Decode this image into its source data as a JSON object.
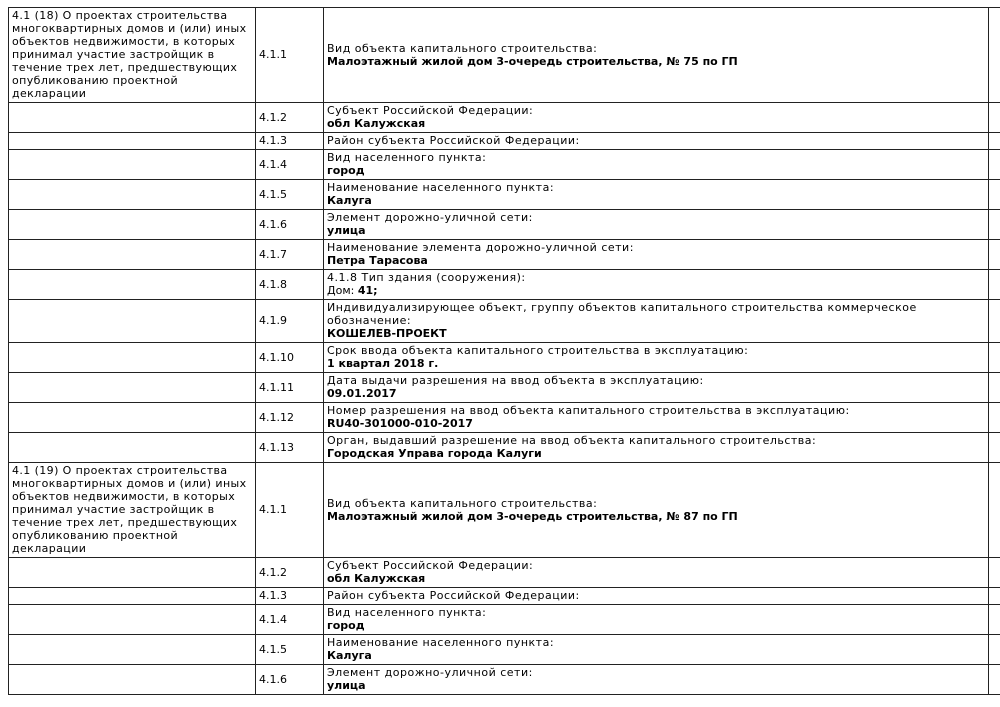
{
  "page": {
    "background_color": "#ffffff",
    "text_color": "#000000",
    "border_color": "#222222"
  },
  "table": {
    "sections": [
      {
        "header": "4.1 (18) О проектах строительства многоквартирных домов и (или) иных объектов недвижимости, в которых принимал участие застройщик в течение трех лет, предшествующих опубликованию проектной декларации",
        "rows": [
          {
            "num": "4.1.1",
            "label": "Вид объекта капитального строительства:",
            "value": "Малоэтажный жилой дом 3-очередь строительства, № 75 по ГП"
          },
          {
            "num": "4.1.2",
            "label": "Субъект Российской Федерации:",
            "value": "обл Калужская"
          },
          {
            "num": "4.1.3",
            "label": "Район субъекта Российской Федерации:",
            "value": ""
          },
          {
            "num": "4.1.4",
            "label": "Вид населенного пункта:",
            "value": "город"
          },
          {
            "num": "4.1.5",
            "label": "Наименование населенного пункта:",
            "value": "Калуга"
          },
          {
            "num": "4.1.6",
            "label": "Элемент дорожно-уличной сети:",
            "value": "улица"
          },
          {
            "num": "4.1.7",
            "label": "Наименование элемента дорожно-уличной сети:",
            "value": "Петра Тарасова"
          },
          {
            "num": "4.1.8",
            "label": "4.1.8 Тип здания (сооружения):",
            "value_prefix": "Дом: ",
            "value": "41;"
          },
          {
            "num": "4.1.9",
            "label": "Индивидуализирующее объект, группу объектов капитального строительства коммерческое обозначение:",
            "value": "КОШЕЛЕВ-ПРОЕКТ"
          },
          {
            "num": "4.1.10",
            "label": "Срок ввода объекта капитального строительства в эксплуатацию:",
            "value": "1 квартал 2018 г."
          },
          {
            "num": "4.1.11",
            "label": "Дата выдачи разрешения на ввод объекта в эксплуатацию:",
            "value": "09.01.2017"
          },
          {
            "num": "4.1.12",
            "label": "Номер разрешения на ввод объекта капитального строительства в эксплуатацию:",
            "value": "RU40-301000-010-2017"
          },
          {
            "num": "4.1.13",
            "label": "Орган, выдавший разрешение на ввод объекта капитального строительства:",
            "value": "Городская Управа города Калуги"
          }
        ]
      },
      {
        "header": "4.1 (19) О проектах строительства многоквартирных домов и (или) иных объектов недвижимости, в которых принимал участие застройщик в течение трех лет, предшествующих опубликованию проектной декларации",
        "rows": [
          {
            "num": "4.1.1",
            "label": "Вид объекта капитального строительства:",
            "value": "Малоэтажный жилой дом 3-очередь строительства, № 87 по ГП"
          },
          {
            "num": "4.1.2",
            "label": "Субъект Российской Федерации:",
            "value": "обл Калужская"
          },
          {
            "num": "4.1.3",
            "label": "Район субъекта Российской Федерации:",
            "value": ""
          },
          {
            "num": "4.1.4",
            "label": "Вид населенного пункта:",
            "value": "город"
          },
          {
            "num": "4.1.5",
            "label": "Наименование населенного пункта:",
            "value": "Калуга"
          },
          {
            "num": "4.1.6",
            "label": "Элемент дорожно-уличной сети:",
            "value": "улица"
          }
        ]
      }
    ]
  }
}
